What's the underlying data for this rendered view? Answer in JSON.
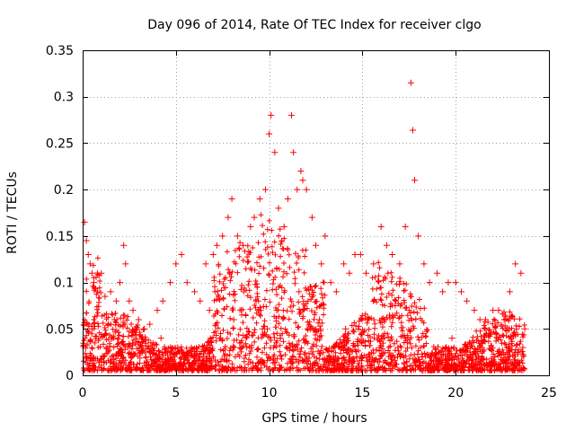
{
  "chart_data": {
    "type": "scatter",
    "title": "Day 096 of 2014, Rate Of TEC Index for receiver clgo",
    "xlabel": "GPS time / hours",
    "ylabel": "ROTI / TECUs",
    "xlim": [
      0,
      25
    ],
    "ylim": [
      0,
      0.35
    ],
    "xticks": [
      0,
      5,
      10,
      15,
      20,
      25
    ],
    "xtick_labels": [
      "0",
      "5",
      "10",
      "15",
      "20",
      "25"
    ],
    "yticks": [
      0,
      0.05,
      0.1,
      0.15,
      0.2,
      0.25,
      0.3,
      0.35
    ],
    "ytick_labels": [
      "0",
      "0.05",
      "0.1",
      "0.15",
      "0.2",
      "0.25",
      "0.3",
      "0.35"
    ],
    "grid": true,
    "marker": "+",
    "color": "#ff0000",
    "series": [
      {
        "name": "ROTI",
        "x": [
          0.1,
          0.2,
          0.3,
          0.4,
          0.5,
          0.6,
          0.8,
          1.0,
          1.2,
          1.5,
          1.8,
          2.0,
          2.2,
          2.3,
          2.5,
          2.7,
          3.0,
          3.3,
          3.6,
          4.0,
          4.3,
          4.7,
          5.0,
          5.3,
          5.6,
          6.0,
          6.3,
          6.6,
          7.0,
          7.2,
          7.5,
          7.8,
          8.0,
          8.3,
          8.6,
          9.0,
          9.2,
          9.5,
          9.8,
          10.0,
          10.1,
          10.3,
          10.5,
          10.8,
          11.0,
          11.2,
          11.3,
          11.5,
          11.7,
          11.8,
          12.0,
          12.3,
          12.5,
          12.8,
          13.0,
          13.3,
          13.6,
          14.0,
          14.3,
          14.6,
          14.9,
          15.2,
          15.6,
          16.0,
          16.3,
          16.6,
          17.0,
          17.3,
          17.6,
          17.7,
          17.8,
          18.0,
          18.3,
          18.6,
          19.0,
          19.3,
          19.6,
          20.0,
          20.3,
          20.6,
          21.0,
          21.3,
          21.6,
          22.0,
          22.3,
          22.6,
          22.9,
          23.2,
          23.5,
          23.7,
          0.2,
          1.3,
          2.6,
          3.8,
          5.1,
          6.2,
          7.4,
          8.8,
          9.9,
          10.6,
          11.4,
          12.2,
          13.5,
          14.7,
          15.8,
          16.9,
          18.2,
          19.5,
          20.8,
          22.1,
          23.3,
          0.5,
          1.7,
          4.2,
          6.8,
          8.1,
          9.3,
          10.4,
          11.6,
          12.7,
          14.1,
          16.2,
          17.5,
          19.8,
          21.4,
          22.8,
          23.6
        ],
        "y": [
          0.165,
          0.145,
          0.13,
          0.12,
          0.11,
          0.1,
          0.09,
          0.11,
          0.085,
          0.09,
          0.08,
          0.1,
          0.14,
          0.12,
          0.08,
          0.07,
          0.06,
          0.05,
          0.055,
          0.07,
          0.08,
          0.1,
          0.12,
          0.13,
          0.1,
          0.09,
          0.08,
          0.12,
          0.13,
          0.14,
          0.15,
          0.17,
          0.19,
          0.15,
          0.14,
          0.16,
          0.17,
          0.19,
          0.2,
          0.26,
          0.28,
          0.24,
          0.18,
          0.16,
          0.19,
          0.28,
          0.24,
          0.2,
          0.22,
          0.21,
          0.2,
          0.17,
          0.14,
          0.12,
          0.15,
          0.1,
          0.09,
          0.12,
          0.11,
          0.13,
          0.13,
          0.11,
          0.12,
          0.16,
          0.14,
          0.13,
          0.12,
          0.16,
          0.315,
          0.264,
          0.21,
          0.15,
          0.12,
          0.1,
          0.11,
          0.09,
          0.1,
          0.1,
          0.09,
          0.08,
          0.07,
          0.06,
          0.06,
          0.07,
          0.07,
          0.06,
          0.09,
          0.12,
          0.11,
          0.05,
          0.02,
          0.03,
          0.02,
          0.025,
          0.03,
          0.02,
          0.04,
          0.03,
          0.05,
          0.04,
          0.03,
          0.05,
          0.03,
          0.02,
          0.04,
          0.03,
          0.02,
          0.03,
          0.02,
          0.02,
          0.01,
          0.05,
          0.06,
          0.04,
          0.07,
          0.06,
          0.08,
          0.07,
          0.09,
          0.06,
          0.05,
          0.06,
          0.07,
          0.04,
          0.03,
          0.02,
          0.03
        ]
      }
    ]
  }
}
